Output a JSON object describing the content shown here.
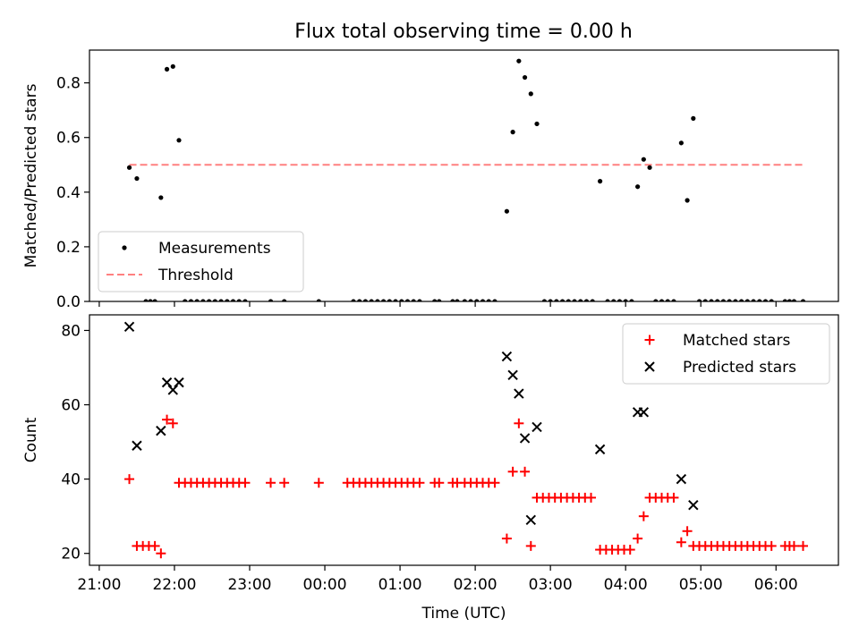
{
  "chart_data": [
    {
      "type": "scatter",
      "title": "Flux total observing time = 0.00 h",
      "xlabel": "",
      "ylabel": "Matched/Predicted stars",
      "xlim": [
        20.87,
        30.83
      ],
      "ylim": [
        0.0,
        0.92
      ],
      "yticks": [
        0.0,
        0.2,
        0.4,
        0.6,
        0.8
      ],
      "ytick_labels": [
        "0.0",
        "0.2",
        "0.4",
        "0.6",
        "0.8"
      ],
      "grid": false,
      "legend_position": "lower-left",
      "threshold": {
        "name": "Threshold",
        "value": 0.5,
        "x_range": [
          21.4,
          30.35
        ],
        "color": "#ff8080",
        "style": "dashed"
      },
      "series": [
        {
          "name": "Measurements",
          "marker": "dot",
          "color": "#000000",
          "points": [
            [
              21.4,
              0.49
            ],
            [
              21.5,
              0.45
            ],
            [
              21.62,
              0.0
            ],
            [
              21.68,
              0.0
            ],
            [
              21.74,
              0.0
            ],
            [
              21.82,
              0.38
            ],
            [
              21.9,
              0.85
            ],
            [
              21.98,
              0.86
            ],
            [
              22.06,
              0.59
            ],
            [
              22.14,
              0.0
            ],
            [
              22.22,
              0.0
            ],
            [
              22.3,
              0.0
            ],
            [
              22.38,
              0.0
            ],
            [
              22.46,
              0.0
            ],
            [
              22.54,
              0.0
            ],
            [
              22.62,
              0.0
            ],
            [
              22.7,
              0.0
            ],
            [
              22.78,
              0.0
            ],
            [
              22.86,
              0.0
            ],
            [
              22.94,
              0.0
            ],
            [
              23.28,
              0.0
            ],
            [
              23.46,
              0.0
            ],
            [
              23.92,
              0.0
            ],
            [
              24.38,
              0.0
            ],
            [
              24.46,
              0.0
            ],
            [
              24.54,
              0.0
            ],
            [
              24.62,
              0.0
            ],
            [
              24.7,
              0.0
            ],
            [
              24.78,
              0.0
            ],
            [
              24.86,
              0.0
            ],
            [
              24.94,
              0.0
            ],
            [
              25.02,
              0.0
            ],
            [
              25.1,
              0.0
            ],
            [
              25.18,
              0.0
            ],
            [
              25.26,
              0.0
            ],
            [
              25.46,
              0.0
            ],
            [
              25.52,
              0.0
            ],
            [
              25.7,
              0.0
            ],
            [
              25.76,
              0.0
            ],
            [
              25.86,
              0.0
            ],
            [
              25.94,
              0.0
            ],
            [
              26.02,
              0.0
            ],
            [
              26.1,
              0.0
            ],
            [
              26.18,
              0.0
            ],
            [
              26.26,
              0.0
            ],
            [
              26.42,
              0.33
            ],
            [
              26.5,
              0.62
            ],
            [
              26.58,
              0.88
            ],
            [
              26.66,
              0.82
            ],
            [
              26.74,
              0.76
            ],
            [
              26.82,
              0.65
            ],
            [
              26.92,
              0.0
            ],
            [
              27.0,
              0.0
            ],
            [
              27.08,
              0.0
            ],
            [
              27.16,
              0.0
            ],
            [
              27.24,
              0.0
            ],
            [
              27.32,
              0.0
            ],
            [
              27.4,
              0.0
            ],
            [
              27.48,
              0.0
            ],
            [
              27.56,
              0.0
            ],
            [
              27.66,
              0.44
            ],
            [
              27.76,
              0.0
            ],
            [
              27.84,
              0.0
            ],
            [
              27.92,
              0.0
            ],
            [
              28.0,
              0.0
            ],
            [
              28.08,
              0.0
            ],
            [
              28.16,
              0.42
            ],
            [
              28.24,
              0.52
            ],
            [
              28.32,
              0.49
            ],
            [
              28.4,
              0.0
            ],
            [
              28.48,
              0.0
            ],
            [
              28.56,
              0.0
            ],
            [
              28.64,
              0.0
            ],
            [
              28.74,
              0.58
            ],
            [
              28.82,
              0.37
            ],
            [
              28.9,
              0.67
            ],
            [
              28.98,
              0.0
            ],
            [
              29.06,
              0.0
            ],
            [
              29.14,
              0.0
            ],
            [
              29.22,
              0.0
            ],
            [
              29.3,
              0.0
            ],
            [
              29.38,
              0.0
            ],
            [
              29.46,
              0.0
            ],
            [
              29.54,
              0.0
            ],
            [
              29.62,
              0.0
            ],
            [
              29.7,
              0.0
            ],
            [
              29.78,
              0.0
            ],
            [
              29.86,
              0.0
            ],
            [
              29.94,
              0.0
            ],
            [
              30.12,
              0.0
            ],
            [
              30.18,
              0.0
            ],
            [
              30.24,
              0.0
            ],
            [
              30.36,
              0.0
            ]
          ]
        }
      ]
    },
    {
      "type": "scatter",
      "title": "",
      "xlabel": "Time (UTC)",
      "ylabel": "Count",
      "xlim": [
        20.87,
        30.83
      ],
      "ylim": [
        16.8,
        84.2
      ],
      "yticks": [
        20,
        40,
        60,
        80
      ],
      "ytick_labels": [
        "20",
        "40",
        "60",
        "80"
      ],
      "xticks": [
        21,
        22,
        23,
        24,
        25,
        26,
        27,
        28,
        29,
        30
      ],
      "xtick_labels": [
        "21:00",
        "22:00",
        "23:00",
        "00:00",
        "01:00",
        "02:00",
        "03:00",
        "04:00",
        "05:00",
        "06:00"
      ],
      "grid": false,
      "legend_position": "upper-right",
      "series": [
        {
          "name": "Matched stars",
          "marker": "plus",
          "color": "#ff0000",
          "points": [
            [
              21.4,
              40
            ],
            [
              21.5,
              22
            ],
            [
              21.58,
              22
            ],
            [
              21.66,
              22
            ],
            [
              21.74,
              22
            ],
            [
              21.82,
              20
            ],
            [
              21.9,
              56
            ],
            [
              21.98,
              55
            ],
            [
              22.06,
              39
            ],
            [
              22.14,
              39
            ],
            [
              22.22,
              39
            ],
            [
              22.3,
              39
            ],
            [
              22.38,
              39
            ],
            [
              22.46,
              39
            ],
            [
              22.54,
              39
            ],
            [
              22.62,
              39
            ],
            [
              22.7,
              39
            ],
            [
              22.78,
              39
            ],
            [
              22.86,
              39
            ],
            [
              22.94,
              39
            ],
            [
              23.28,
              39
            ],
            [
              23.46,
              39
            ],
            [
              23.92,
              39
            ],
            [
              24.3,
              39
            ],
            [
              24.38,
              39
            ],
            [
              24.46,
              39
            ],
            [
              24.54,
              39
            ],
            [
              24.62,
              39
            ],
            [
              24.7,
              39
            ],
            [
              24.78,
              39
            ],
            [
              24.86,
              39
            ],
            [
              24.94,
              39
            ],
            [
              25.02,
              39
            ],
            [
              25.1,
              39
            ],
            [
              25.18,
              39
            ],
            [
              25.26,
              39
            ],
            [
              25.46,
              39
            ],
            [
              25.52,
              39
            ],
            [
              25.7,
              39
            ],
            [
              25.76,
              39
            ],
            [
              25.86,
              39
            ],
            [
              25.94,
              39
            ],
            [
              26.02,
              39
            ],
            [
              26.1,
              39
            ],
            [
              26.18,
              39
            ],
            [
              26.26,
              39
            ],
            [
              26.42,
              24
            ],
            [
              26.5,
              42
            ],
            [
              26.58,
              55
            ],
            [
              26.66,
              42
            ],
            [
              26.74,
              22
            ],
            [
              26.82,
              35
            ],
            [
              26.9,
              35
            ],
            [
              26.98,
              35
            ],
            [
              27.06,
              35
            ],
            [
              27.14,
              35
            ],
            [
              27.22,
              35
            ],
            [
              27.3,
              35
            ],
            [
              27.38,
              35
            ],
            [
              27.46,
              35
            ],
            [
              27.54,
              35
            ],
            [
              27.66,
              21
            ],
            [
              27.74,
              21
            ],
            [
              27.82,
              21
            ],
            [
              27.9,
              21
            ],
            [
              27.98,
              21
            ],
            [
              28.06,
              21
            ],
            [
              28.16,
              24
            ],
            [
              28.24,
              30
            ],
            [
              28.32,
              35
            ],
            [
              28.4,
              35
            ],
            [
              28.48,
              35
            ],
            [
              28.56,
              35
            ],
            [
              28.64,
              35
            ],
            [
              28.74,
              23
            ],
            [
              28.82,
              26
            ],
            [
              28.9,
              22
            ],
            [
              28.98,
              22
            ],
            [
              29.06,
              22
            ],
            [
              29.14,
              22
            ],
            [
              29.22,
              22
            ],
            [
              29.3,
              22
            ],
            [
              29.38,
              22
            ],
            [
              29.46,
              22
            ],
            [
              29.54,
              22
            ],
            [
              29.62,
              22
            ],
            [
              29.7,
              22
            ],
            [
              29.78,
              22
            ],
            [
              29.86,
              22
            ],
            [
              29.94,
              22
            ],
            [
              30.12,
              22
            ],
            [
              30.18,
              22
            ],
            [
              30.24,
              22
            ],
            [
              30.36,
              22
            ]
          ]
        },
        {
          "name": "Predicted stars",
          "marker": "x",
          "color": "#000000",
          "points": [
            [
              21.4,
              81
            ],
            [
              21.5,
              49
            ],
            [
              21.82,
              53
            ],
            [
              21.9,
              66
            ],
            [
              21.98,
              64
            ],
            [
              22.06,
              66
            ],
            [
              26.42,
              73
            ],
            [
              26.5,
              68
            ],
            [
              26.58,
              63
            ],
            [
              26.66,
              51
            ],
            [
              26.74,
              29
            ],
            [
              26.82,
              54
            ],
            [
              27.66,
              48
            ],
            [
              28.16,
              58
            ],
            [
              28.24,
              58
            ],
            [
              28.74,
              40
            ],
            [
              28.9,
              33
            ]
          ]
        }
      ]
    }
  ]
}
